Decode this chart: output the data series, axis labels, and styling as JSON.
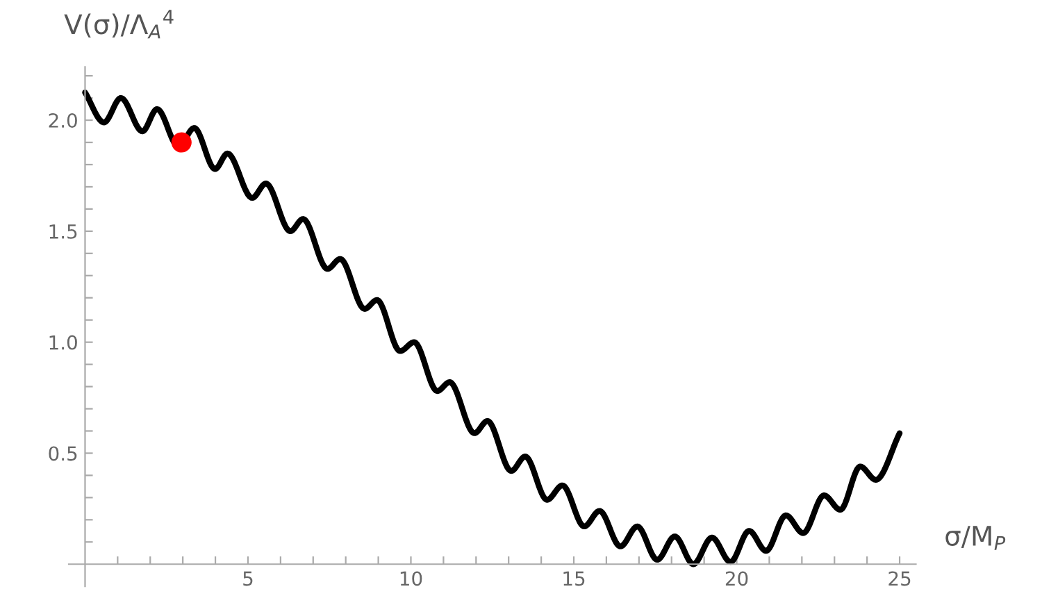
{
  "chart_data": {
    "type": "line",
    "xlabel": "σ/M$_{P}$",
    "ylabel": "V(σ)/Λ$_{A}$$^{4}$",
    "xlim": [
      -0.5,
      25.5
    ],
    "ylim": [
      -0.1,
      2.24
    ],
    "xticks": [
      {
        "value": 1,
        "label": null
      },
      {
        "value": 2,
        "label": null
      },
      {
        "value": 3,
        "label": null
      },
      {
        "value": 4,
        "label": null
      },
      5,
      {
        "value": 6,
        "label": null
      },
      {
        "value": 7,
        "label": null
      },
      {
        "value": 8,
        "label": null
      },
      {
        "value": 9,
        "label": null
      },
      10,
      {
        "value": 11,
        "label": null
      },
      {
        "value": 12,
        "label": null
      },
      {
        "value": 13,
        "label": null
      },
      {
        "value": 14,
        "label": null
      },
      15,
      {
        "value": 16,
        "label": null
      },
      {
        "value": 17,
        "label": null
      },
      {
        "value": 18,
        "label": null
      },
      {
        "value": 19,
        "label": null
      },
      20,
      {
        "value": 21,
        "label": null
      },
      {
        "value": 22,
        "label": null
      },
      {
        "value": 23,
        "label": null
      },
      {
        "value": 24,
        "label": null
      },
      25
    ],
    "yticks": [
      {
        "value": 0.1,
        "label": null
      },
      {
        "value": 0.2,
        "label": null
      },
      {
        "value": 0.3,
        "label": null
      },
      {
        "value": 0.4,
        "label": null
      },
      {
        "value": 0.5,
        "label": "0.5"
      },
      {
        "value": 0.6,
        "label": null
      },
      {
        "value": 0.7,
        "label": null
      },
      {
        "value": 0.8,
        "label": null
      },
      {
        "value": 0.9,
        "label": null
      },
      {
        "value": 1.0,
        "label": "1.0"
      },
      {
        "value": 1.1,
        "label": null
      },
      {
        "value": 1.2,
        "label": null
      },
      {
        "value": 1.3,
        "label": null
      },
      {
        "value": 1.4,
        "label": null
      },
      {
        "value": 1.5,
        "label": "1.5"
      },
      {
        "value": 1.6,
        "label": null
      },
      {
        "value": 1.7,
        "label": null
      },
      {
        "value": 1.8,
        "label": null
      },
      {
        "value": 1.9,
        "label": null
      },
      {
        "value": 2.0,
        "label": "2.0"
      },
      {
        "value": 2.1,
        "label": null
      },
      {
        "value": 2.2,
        "label": null
      }
    ],
    "grid": false,
    "series": [
      {
        "color": "#000000",
        "x": [
          0,
          0.58,
          1.1,
          1.76,
          2.21,
          2.87,
          3.35,
          3.99,
          4.37,
          5.13,
          5.55,
          6.3,
          6.69,
          7.44,
          7.83,
          8.58,
          8.96,
          9.67,
          10.1,
          10.81,
          11.19,
          11.95,
          12.35,
          13.08,
          13.51,
          14.18,
          14.65,
          15.32,
          15.79,
          16.43,
          16.95,
          17.56,
          18.1,
          18.67,
          19.24,
          19.81,
          20.38,
          20.9,
          21.51,
          22.04,
          22.68,
          23.18,
          23.79,
          24.27,
          25.0
        ],
        "values": [
          2.125,
          1.99,
          2.1,
          1.95,
          2.05,
          1.88,
          1.965,
          1.78,
          1.85,
          1.65,
          1.715,
          1.5,
          1.555,
          1.33,
          1.375,
          1.15,
          1.19,
          0.96,
          1.0,
          0.78,
          0.82,
          0.59,
          0.645,
          0.42,
          0.485,
          0.29,
          0.355,
          0.17,
          0.24,
          0.08,
          0.17,
          0.02,
          0.125,
          0.0,
          0.12,
          0.01,
          0.15,
          0.06,
          0.22,
          0.14,
          0.31,
          0.245,
          0.44,
          0.38,
          0.59
        ]
      },
      {
        "type": "scatter",
        "color": "#ff0000",
        "x": [
          2.96
        ],
        "values": [
          1.9
        ]
      }
    ]
  }
}
